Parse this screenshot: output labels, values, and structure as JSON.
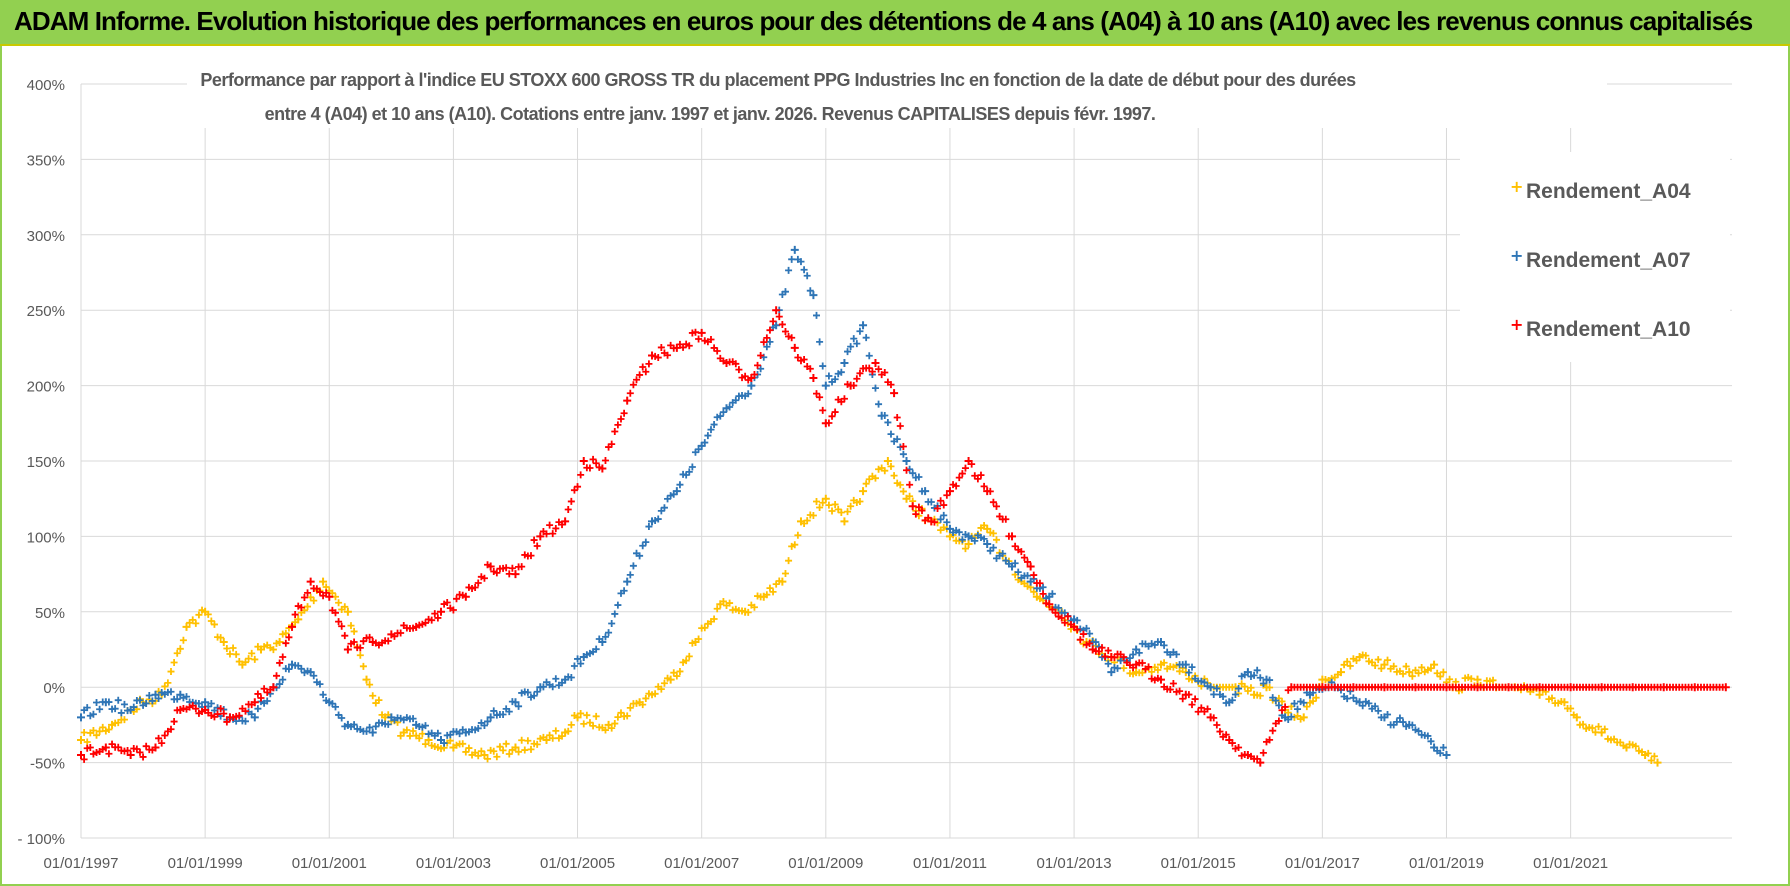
{
  "banner": {
    "text": "ADAM Informe. Evolution historique des performances en euros pour des détentions de 4 ans (A04) à 10 ans (A10) avec les revenus connus capitalisés"
  },
  "colors": {
    "banner_bg": "#92d050",
    "a04": "#ffc000",
    "a07": "#2e75b6",
    "a10": "#ff0000",
    "grid": "#d9d9d9",
    "axis_text": "#595959"
  },
  "chart_data": {
    "type": "scatter",
    "marker": "plus",
    "title_line1": "Performance par rapport à l'indice EU STOXX 600 GROSS TR  du placement PPG Industries Inc en fonction de la date de début pour des durées",
    "title_line2": "entre 4 (A04) et 10 ans (A10).  Cotations entre janv. 1997 et janv. 2026. Revenus CAPITALISES depuis févr. 1997.",
    "xlabel": "",
    "ylabel": "",
    "x_unit": "year",
    "xlim": [
      1997.0,
      2023.6
    ],
    "ylim": [
      -100,
      400
    ],
    "yticks": [
      -100,
      -50,
      0,
      50,
      100,
      150,
      200,
      250,
      300,
      350,
      400
    ],
    "ytick_labels": [
      "- 100%",
      "-50%",
      "0%",
      "50%",
      "100%",
      "150%",
      "200%",
      "250%",
      "300%",
      "350%",
      "400%"
    ],
    "xticks": [
      1997,
      1999,
      2001,
      2003,
      2005,
      2007,
      2009,
      2011,
      2013,
      2015,
      2017,
      2019,
      2021
    ],
    "xtick_labels": [
      "01/01/1997",
      "01/01/1999",
      "01/01/2001",
      "01/01/2003",
      "01/01/2005",
      "01/01/2007",
      "01/01/2009",
      "01/01/2011",
      "01/01/2013",
      "01/01/2015",
      "01/01/2017",
      "01/01/2019",
      "01/01/2021"
    ],
    "grid": true,
    "legend_position": "top-right",
    "series": [
      {
        "name": "Rendement_A04",
        "color": "#ffc000",
        "x": [
          1997.0,
          1997.5,
          1998.0,
          1998.3,
          1998.7,
          1999.0,
          1999.3,
          1999.6,
          1999.9,
          2000.2,
          2000.5,
          2000.9,
          2001.3,
          2001.6,
          2001.9,
          2002.2,
          2002.6,
          2003.0,
          2003.5,
          2004.0,
          2004.5,
          2004.8,
          2005.0,
          2005.5,
          2006.0,
          2006.5,
          2006.9,
          2007.3,
          2007.7,
          2008.0,
          2008.3,
          2008.6,
          2009.0,
          2009.3,
          2009.6,
          2010.0,
          2010.3,
          2010.7,
          2011.0,
          2011.3,
          2011.6,
          2012.0,
          2012.4,
          2012.8,
          2013.2,
          2013.6,
          2014.0,
          2014.4,
          2014.8,
          2015.2,
          2015.6,
          2015.9,
          2016.1,
          2016.4,
          2016.7,
          2017.0,
          2017.3,
          2017.6,
          2018.0,
          2018.4,
          2018.8,
          2019.1,
          2019.5,
          2019.8,
          2020.1,
          2020.5,
          2020.9,
          2021.1,
          2021.5,
          2021.9,
          2022.2,
          2022.4
        ],
        "y": [
          -35,
          -25,
          -10,
          -5,
          40,
          50,
          30,
          15,
          25,
          30,
          45,
          70,
          50,
          5,
          -20,
          -30,
          -35,
          -40,
          -45,
          -40,
          -35,
          -30,
          -20,
          -25,
          -10,
          5,
          30,
          55,
          50,
          60,
          70,
          110,
          125,
          110,
          130,
          150,
          125,
          110,
          100,
          95,
          105,
          80,
          60,
          50,
          30,
          20,
          10,
          15,
          10,
          0,
          0,
          -5,
          0,
          -15,
          -20,
          5,
          10,
          20,
          15,
          10,
          15,
          0,
          5,
          0,
          0,
          -5,
          -10,
          -20,
          -30,
          -40,
          -45,
          -50
        ]
      },
      {
        "name": "Rendement_A07",
        "color": "#2e75b6",
        "x": [
          1997.0,
          1997.4,
          1997.8,
          1998.2,
          1998.6,
          1999.0,
          1999.4,
          1999.8,
          2000.1,
          2000.4,
          2000.7,
          2001.0,
          2001.3,
          2001.7,
          2002.0,
          2002.4,
          2002.8,
          2003.2,
          2003.6,
          2004.0,
          2004.4,
          2004.8,
          2005.1,
          2005.4,
          2005.8,
          2006.2,
          2006.6,
          2007.0,
          2007.4,
          2007.8,
          2008.2,
          2008.5,
          2008.8,
          2009.0,
          2009.3,
          2009.6,
          2009.9,
          2010.3,
          2010.6,
          2011.0,
          2011.3,
          2011.6,
          2012.0,
          2012.3,
          2012.6,
          2013.0,
          2013.3,
          2013.6,
          2014.0,
          2014.4,
          2014.8,
          2015.2,
          2015.5,
          2015.8,
          2016.1,
          2016.4,
          2016.8,
          2017.2,
          2017.6,
          2018.0,
          2018.4,
          2018.8,
          2019.0
        ],
        "y": [
          -20,
          -10,
          -15,
          -5,
          -5,
          -10,
          -20,
          -20,
          0,
          15,
          10,
          -10,
          -25,
          -30,
          -20,
          -25,
          -35,
          -30,
          -20,
          -10,
          0,
          5,
          20,
          30,
          70,
          110,
          130,
          160,
          185,
          200,
          240,
          290,
          260,
          200,
          215,
          240,
          180,
          150,
          130,
          105,
          100,
          95,
          80,
          70,
          60,
          45,
          30,
          10,
          25,
          30,
          15,
          0,
          -10,
          10,
          5,
          -20,
          -5,
          0,
          -10,
          -20,
          -25,
          -40,
          -45
        ]
      },
      {
        "name": "Rendement_A10",
        "color": "#ff0000",
        "x": [
          1997.0,
          1997.4,
          1997.8,
          1998.2,
          1998.6,
          1999.0,
          1999.4,
          1999.8,
          2000.1,
          2000.4,
          2000.7,
          2001.0,
          2001.3,
          2001.7,
          2002.0,
          2002.4,
          2002.8,
          2003.2,
          2003.6,
          2004.0,
          2004.4,
          2004.8,
          2005.1,
          2005.4,
          2005.8,
          2006.2,
          2006.6,
          2007.0,
          2007.4,
          2007.8,
          2008.2,
          2008.5,
          2008.8,
          2009.0,
          2009.4,
          2009.8,
          2010.1,
          2010.4,
          2010.7,
          2011.0,
          2011.3,
          2011.6,
          2012.0,
          2012.3,
          2012.6,
          2013.0,
          2013.3,
          2013.6,
          2014.0,
          2014.4,
          2014.8,
          2015.2,
          2015.5,
          2015.8,
          2016.0,
          2016.5,
          2017.0,
          2017.5,
          2018.0,
          2018.5,
          2019.0,
          2019.5,
          2020.0,
          2020.5,
          2021.0,
          2021.5,
          2022.0,
          2022.5,
          2023.0,
          2023.5
        ],
        "y": [
          -45,
          -40,
          -45,
          -40,
          -15,
          -15,
          -20,
          -10,
          0,
          40,
          70,
          60,
          25,
          30,
          35,
          40,
          50,
          60,
          80,
          75,
          100,
          110,
          150,
          145,
          190,
          220,
          225,
          235,
          215,
          205,
          250,
          225,
          205,
          175,
          200,
          215,
          195,
          120,
          110,
          130,
          150,
          130,
          100,
          80,
          55,
          40,
          25,
          20,
          15,
          5,
          -5,
          -20,
          -35,
          -45,
          -50,
          0,
          0,
          0,
          0,
          0,
          0,
          0,
          0,
          0,
          0,
          0,
          0,
          0,
          0,
          0
        ]
      }
    ]
  }
}
